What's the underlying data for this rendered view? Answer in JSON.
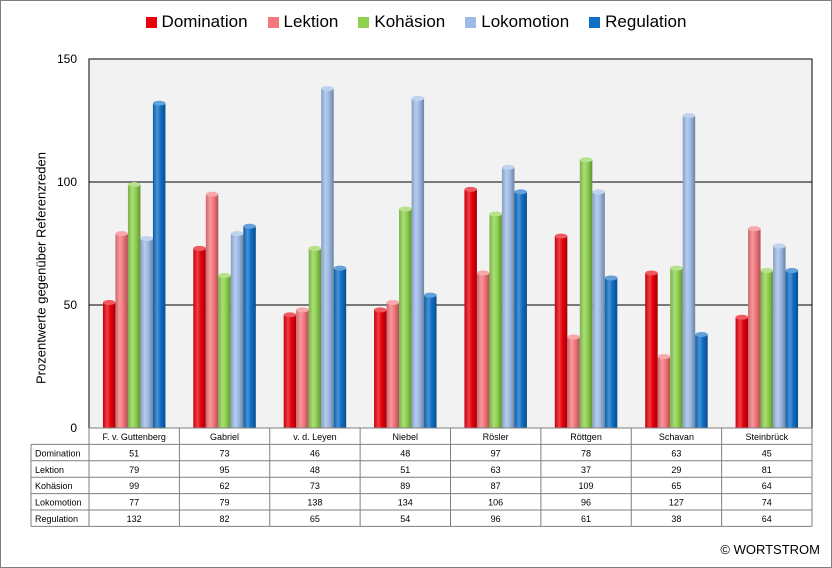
{
  "chart_data": {
    "type": "bar",
    "categories": [
      "F. v. Guttenberg",
      "Gabriel",
      "v. d. Leyen",
      "Niebel",
      "Rösler",
      "Röttgen",
      "Schavan",
      "Steinbrück"
    ],
    "series": [
      {
        "name": "Domination",
        "color": "#e8000b",
        "values": [
          51,
          73,
          46,
          48,
          97,
          78,
          63,
          45
        ]
      },
      {
        "name": "Lektion",
        "color": "#f4777c",
        "values": [
          79,
          95,
          48,
          51,
          63,
          37,
          29,
          81
        ]
      },
      {
        "name": "Kohäsion",
        "color": "#8fd14f",
        "values": [
          99,
          62,
          73,
          89,
          87,
          109,
          65,
          64
        ]
      },
      {
        "name": "Lokomotion",
        "color": "#9dbbe6",
        "values": [
          77,
          79,
          138,
          134,
          106,
          96,
          127,
          74
        ]
      },
      {
        "name": "Regulation",
        "color": "#0f6fc6",
        "values": [
          132,
          82,
          65,
          54,
          96,
          61,
          38,
          64
        ]
      }
    ],
    "ylabel": "Prozentwerte gegenüber Referenzreden",
    "ylim": [
      0,
      150
    ],
    "yticks": [
      "0",
      "50",
      "100",
      "150"
    ],
    "grid": true,
    "legend_position": "top",
    "data_table": true
  },
  "copyright": "© WORTSTROM"
}
